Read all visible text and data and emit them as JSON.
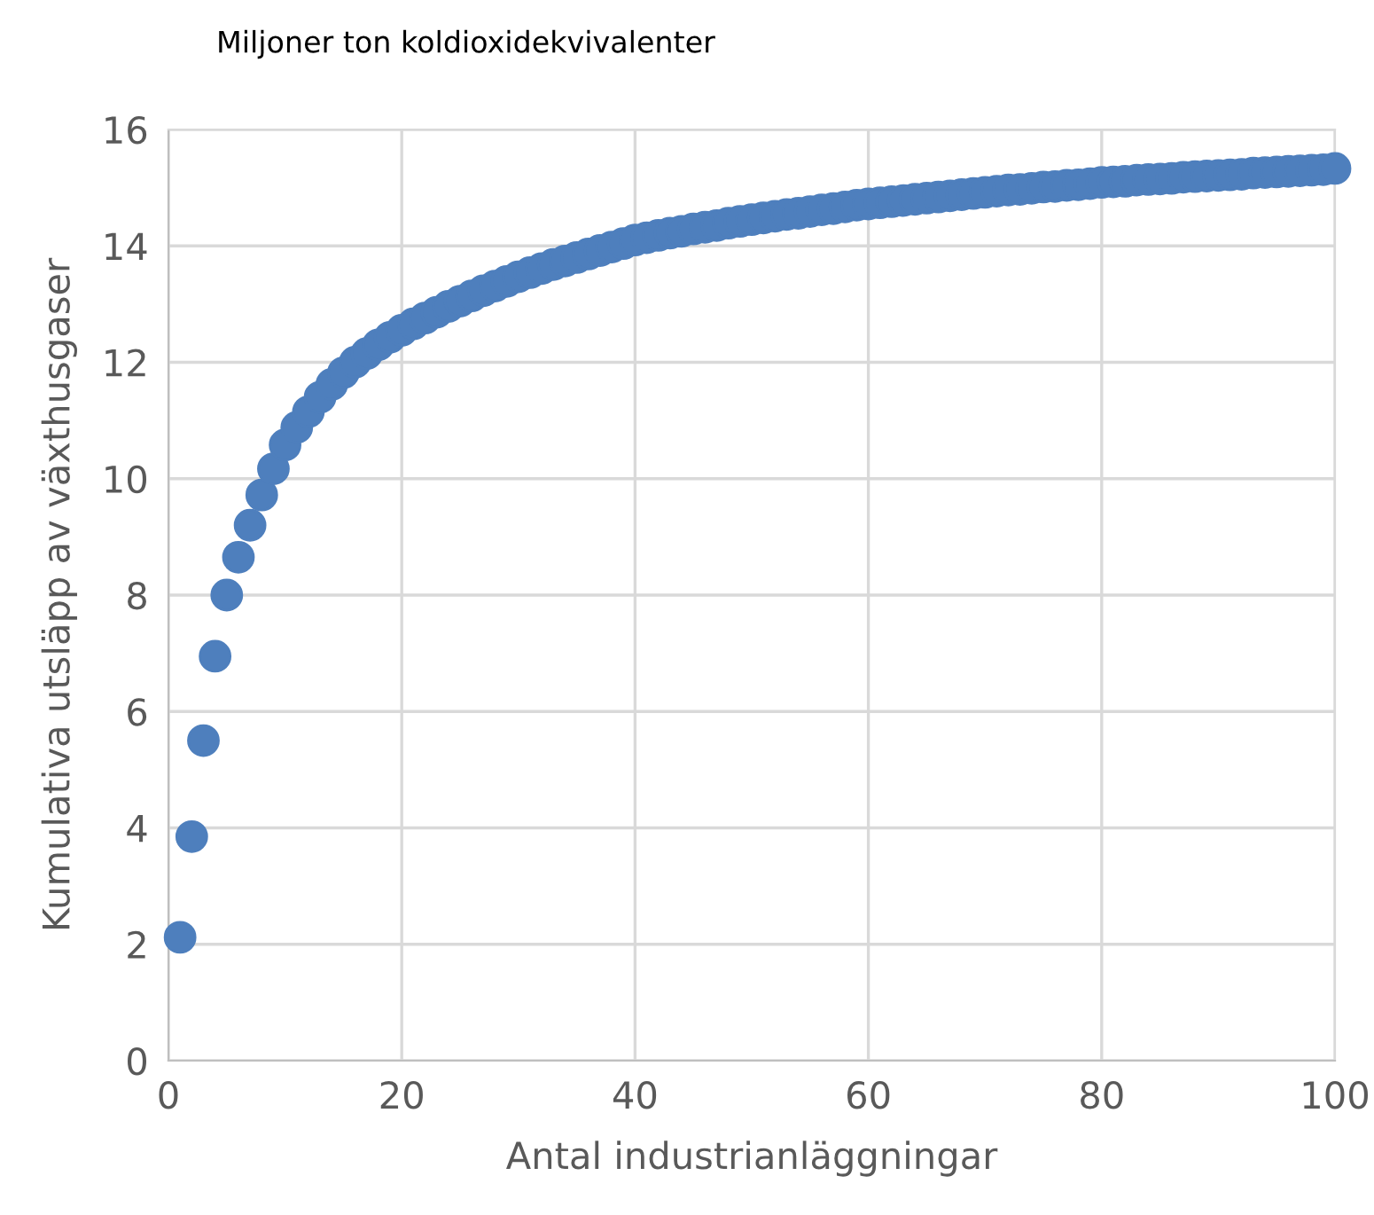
{
  "chart_data": {
    "type": "scatter",
    "title": "Miljoner ton koldioxidekvivalenter",
    "xlabel": "Antal industrianläggningar",
    "ylabel": "Kumulativa utsläpp av växthusgaser",
    "x": [
      1,
      2,
      3,
      4,
      5,
      6,
      7,
      8,
      9,
      10,
      11,
      12,
      13,
      14,
      15,
      16,
      17,
      18,
      19,
      20,
      21,
      22,
      23,
      24,
      25,
      26,
      27,
      28,
      29,
      30,
      31,
      32,
      33,
      34,
      35,
      36,
      37,
      38,
      39,
      40,
      41,
      42,
      43,
      44,
      45,
      46,
      47,
      48,
      49,
      50,
      51,
      52,
      53,
      54,
      55,
      56,
      57,
      58,
      59,
      60,
      61,
      62,
      63,
      64,
      65,
      66,
      67,
      68,
      69,
      70,
      71,
      72,
      73,
      74,
      75,
      76,
      77,
      78,
      79,
      80,
      81,
      82,
      83,
      84,
      85,
      86,
      87,
      88,
      89,
      90,
      91,
      92,
      93,
      94,
      95,
      96,
      97,
      98,
      99,
      100
    ],
    "series": [
      {
        "color": "#4e7fbd",
        "values": [
          2.12,
          3.85,
          5.5,
          6.95,
          8.0,
          8.65,
          9.2,
          9.72,
          10.17,
          10.58,
          10.88,
          11.15,
          11.4,
          11.62,
          11.82,
          12.0,
          12.15,
          12.3,
          12.43,
          12.55,
          12.66,
          12.76,
          12.86,
          12.96,
          13.05,
          13.14,
          13.23,
          13.31,
          13.39,
          13.47,
          13.54,
          13.61,
          13.68,
          13.74,
          13.8,
          13.86,
          13.92,
          13.98,
          14.04,
          14.1,
          14.14,
          14.18,
          14.22,
          14.25,
          14.29,
          14.32,
          14.35,
          14.39,
          14.42,
          14.45,
          14.48,
          14.51,
          14.54,
          14.56,
          14.59,
          14.62,
          14.64,
          14.67,
          14.7,
          14.72,
          14.74,
          14.76,
          14.78,
          14.8,
          14.82,
          14.84,
          14.86,
          14.88,
          14.9,
          14.92,
          14.94,
          14.96,
          14.97,
          14.99,
          15.01,
          15.02,
          15.04,
          15.05,
          15.07,
          15.09,
          15.1,
          15.11,
          15.13,
          15.14,
          15.15,
          15.16,
          15.18,
          15.19,
          15.2,
          15.21,
          15.22,
          15.23,
          15.25,
          15.26,
          15.27,
          15.28,
          15.29,
          15.3,
          15.31,
          15.33
        ]
      }
    ],
    "xlim": [
      0,
      100
    ],
    "ylim": [
      0,
      16
    ],
    "xticks": [
      0,
      20,
      40,
      60,
      80,
      100
    ],
    "yticks": [
      0,
      2,
      4,
      6,
      8,
      10,
      12,
      14,
      16
    ],
    "grid": true,
    "marker": "circle"
  }
}
